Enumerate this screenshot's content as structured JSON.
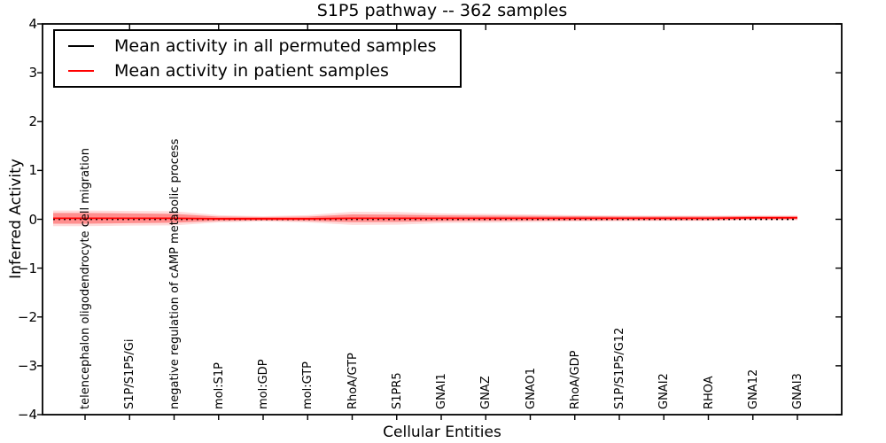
{
  "title": "S1P5 pathway -- 362 samples",
  "x_axis": {
    "label": "Cellular Entities"
  },
  "y_axis": {
    "label": "Inferred Activity",
    "ticks": [
      "4",
      "3",
      "2",
      "1",
      "0",
      "−1",
      "−2",
      "−3",
      "−4"
    ]
  },
  "legend": {
    "entries": [
      {
        "label": "Mean activity in all permuted samples",
        "color": "#000000"
      },
      {
        "label": "Mean activity in patient samples",
        "color": "#ff0000"
      }
    ]
  },
  "colors": {
    "patient": "#ff0000",
    "permuted": "#000000",
    "band": "#ff0000",
    "background": "#ffffff"
  },
  "chart_data": {
    "type": "line",
    "title": "S1P5 pathway -- 362 samples",
    "xlabel": "Cellular Entities",
    "ylabel": "Inferred Activity",
    "ylim": [
      -4,
      4
    ],
    "grid": false,
    "legend_position": "upper left",
    "categories": [
      "telencephalon oligodendrocyte cell migration",
      "S1P/S1P5/Gi",
      "negative regulation of cAMP metabolic process",
      "mol:S1P",
      "mol:GDP",
      "mol:GTP",
      "RhoA/GTP",
      "S1PR5",
      "GNAI1",
      "GNAZ",
      "GNAO1",
      "RhoA/GDP",
      "S1P/S1P5/G12",
      "GNAI2",
      "RHOA",
      "GNA12",
      "GNAI3"
    ],
    "series": [
      {
        "name": "Mean activity in all permuted samples",
        "color": "#000000",
        "line_style": "dotted",
        "values": [
          0,
          0,
          0,
          0,
          0,
          0,
          0,
          0,
          0,
          0,
          0,
          0,
          0,
          0,
          0,
          0,
          0
        ]
      },
      {
        "name": "Mean activity in patient samples",
        "color": "#ff0000",
        "line_style": "solid",
        "values": [
          0.02,
          0.02,
          0.02,
          0.01,
          0.01,
          0.01,
          0.02,
          0.02,
          0.02,
          0.02,
          0.02,
          0.02,
          0.02,
          0.02,
          0.02,
          0.03,
          0.03
        ]
      }
    ],
    "uncertainty_band": {
      "series": "Mean activity in patient samples",
      "color": "#ff0000",
      "inner_alpha": 0.35,
      "outer_alpha": 0.14,
      "inner_half_width": [
        0.11,
        0.1,
        0.09,
        0.045,
        0.036,
        0.045,
        0.08,
        0.075,
        0.06,
        0.055,
        0.05,
        0.045,
        0.04,
        0.04,
        0.04,
        0.033,
        0.033
      ],
      "outer_half_width": [
        0.16,
        0.15,
        0.145,
        0.073,
        0.054,
        0.073,
        0.135,
        0.13,
        0.1,
        0.09,
        0.08,
        0.065,
        0.06,
        0.055,
        0.055,
        0.05,
        0.05
      ]
    }
  }
}
